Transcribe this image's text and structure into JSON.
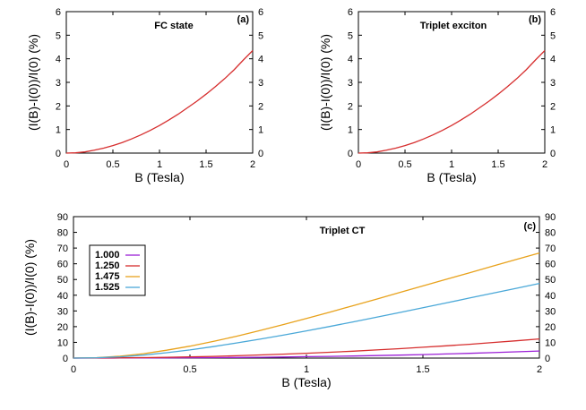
{
  "chart_data": [
    {
      "type": "line",
      "panel_label": "(a)",
      "title": "FC state",
      "xlabel": "B (Tesla)",
      "ylabel": "(I(B)-I(0))/I(0) (%)",
      "xlim": [
        0,
        2
      ],
      "ylim": [
        0,
        6
      ],
      "xticks": [
        "0",
        "0.5",
        "1",
        "1.5",
        "2"
      ],
      "yticks": [
        "0",
        "1",
        "2",
        "3",
        "4",
        "5",
        "6"
      ],
      "y2ticks": [
        "0",
        "1",
        "2",
        "3",
        "4",
        "5",
        "6"
      ],
      "grid": false,
      "series": [
        {
          "color": "#d62e2e",
          "x": [
            0,
            0.1,
            0.2,
            0.3,
            0.4,
            0.5,
            0.6,
            0.7,
            0.8,
            0.9,
            1.0,
            1.1,
            1.2,
            1.3,
            1.4,
            1.5,
            1.6,
            1.7,
            1.8,
            1.9,
            2.0
          ],
          "y": [
            0,
            0.01,
            0.05,
            0.12,
            0.21,
            0.32,
            0.45,
            0.6,
            0.77,
            0.96,
            1.17,
            1.4,
            1.65,
            1.92,
            2.2,
            2.5,
            2.82,
            3.16,
            3.53,
            3.95,
            4.35
          ]
        }
      ]
    },
    {
      "type": "line",
      "panel_label": "(b)",
      "title": "Triplet exciton",
      "xlabel": "B (Tesla)",
      "ylabel": "(I(B)-I(0))/I(0) (%)",
      "xlim": [
        0,
        2
      ],
      "ylim": [
        0,
        6
      ],
      "xticks": [
        "0",
        "0.5",
        "1",
        "1.5",
        "2"
      ],
      "yticks": [
        "0",
        "1",
        "2",
        "3",
        "4",
        "5",
        "6"
      ],
      "y2ticks": [
        "0",
        "1",
        "2",
        "3",
        "4",
        "5",
        "6"
      ],
      "grid": false,
      "series": [
        {
          "color": "#d62e2e",
          "x": [
            0,
            0.1,
            0.2,
            0.3,
            0.4,
            0.5,
            0.6,
            0.7,
            0.8,
            0.9,
            1.0,
            1.1,
            1.2,
            1.3,
            1.4,
            1.5,
            1.6,
            1.7,
            1.8,
            1.9,
            2.0
          ],
          "y": [
            0,
            0.01,
            0.05,
            0.12,
            0.21,
            0.32,
            0.45,
            0.6,
            0.77,
            0.96,
            1.17,
            1.4,
            1.65,
            1.92,
            2.2,
            2.5,
            2.82,
            3.16,
            3.53,
            3.95,
            4.35
          ]
        }
      ]
    },
    {
      "type": "line",
      "panel_label": "(c)",
      "title": "Triplet CT",
      "xlabel": "B (Tesla)",
      "ylabel": "(I(B)-I(0))/I(0) (%)",
      "xlim": [
        0,
        2
      ],
      "ylim": [
        0,
        90
      ],
      "xticks": [
        "0",
        "0.5",
        "1",
        "1.5",
        "2"
      ],
      "yticks": [
        "0",
        "10",
        "20",
        "30",
        "40",
        "50",
        "60",
        "70",
        "80",
        "90"
      ],
      "y2ticks": [
        "0",
        "10",
        "20",
        "30",
        "40",
        "50",
        "60",
        "70",
        "80",
        "90"
      ],
      "grid": false,
      "legend_position": "top-left",
      "series": [
        {
          "name": "1.000",
          "color": "#9b1fd6",
          "x": [
            0,
            0.1,
            0.2,
            0.3,
            0.4,
            0.5,
            0.6,
            0.7,
            0.8,
            0.9,
            1.0,
            1.1,
            1.2,
            1.3,
            1.4,
            1.5,
            1.6,
            1.7,
            1.8,
            1.9,
            2.0
          ],
          "y": [
            0,
            0.0,
            0.05,
            0.1,
            0.15,
            0.2,
            0.3,
            0.4,
            0.5,
            0.7,
            0.9,
            1.1,
            1.3,
            1.6,
            1.9,
            2.2,
            2.6,
            3.0,
            3.5,
            4.0,
            4.5
          ]
        },
        {
          "name": "1.250",
          "color": "#d62e2e",
          "x": [
            0,
            0.1,
            0.2,
            0.3,
            0.4,
            0.5,
            0.6,
            0.7,
            0.8,
            0.9,
            1.0,
            1.1,
            1.2,
            1.3,
            1.4,
            1.5,
            1.6,
            1.7,
            1.8,
            1.9,
            2.0
          ],
          "y": [
            0,
            0.05,
            0.15,
            0.3,
            0.5,
            0.8,
            1.1,
            1.5,
            2.0,
            2.5,
            3.1,
            3.7,
            4.4,
            5.2,
            6.0,
            6.9,
            7.8,
            8.8,
            9.9,
            11.0,
            12.2
          ]
        },
        {
          "name": "1.475",
          "color": "#e8a21c",
          "x": [
            0,
            0.1,
            0.2,
            0.3,
            0.4,
            0.5,
            0.6,
            0.7,
            0.8,
            0.9,
            1.0,
            1.1,
            1.2,
            1.3,
            1.4,
            1.5,
            1.6,
            1.7,
            1.8,
            1.9,
            2.0
          ],
          "y": [
            0,
            0.3,
            1.2,
            2.8,
            5.0,
            7.6,
            10.6,
            13.9,
            17.5,
            21.3,
            25.2,
            29.2,
            33.3,
            37.5,
            41.7,
            45.9,
            50.1,
            54.3,
            58.5,
            62.7,
            66.9
          ]
        },
        {
          "name": "1.525",
          "color": "#4aa8d8",
          "x": [
            0,
            0.1,
            0.2,
            0.3,
            0.4,
            0.5,
            0.6,
            0.7,
            0.8,
            0.9,
            1.0,
            1.1,
            1.2,
            1.3,
            1.4,
            1.5,
            1.6,
            1.7,
            1.8,
            1.9,
            2.0
          ],
          "y": [
            0,
            0.2,
            0.8,
            1.9,
            3.4,
            5.2,
            7.3,
            9.6,
            12.0,
            14.6,
            17.3,
            20.1,
            23.0,
            26.0,
            29.0,
            32.0,
            35.1,
            38.2,
            41.3,
            44.4,
            47.5
          ]
        }
      ]
    }
  ]
}
